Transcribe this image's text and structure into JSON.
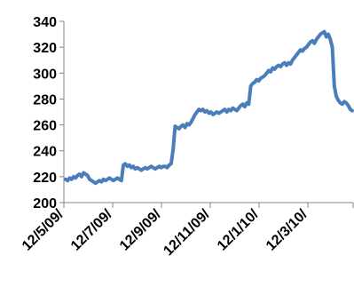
{
  "chart_data": {
    "type": "line",
    "title": "",
    "xlabel": "",
    "ylabel": "",
    "ylim": [
      200,
      340
    ],
    "y_ticks": [
      200,
      220,
      240,
      260,
      280,
      300,
      320,
      340
    ],
    "x_tick_labels": [
      "12/5/09/",
      "12/7/09/",
      "12/9/09/",
      "12/11/09/",
      "12/1/10/",
      "12/3/10/"
    ],
    "grid": false,
    "legend": "none",
    "colors": {
      "line": "#4a7ebb",
      "axis": "#868686"
    },
    "series": [
      {
        "values": [
          218,
          217,
          219,
          218,
          220,
          219,
          221,
          222,
          220,
          223,
          222,
          221,
          218,
          217,
          216,
          215,
          216,
          217,
          216,
          218,
          217,
          218,
          219,
          218,
          217,
          218,
          219,
          218,
          217,
          229,
          230,
          228,
          229,
          227,
          228,
          226,
          227,
          226,
          225,
          226,
          227,
          226,
          227,
          228,
          227,
          226,
          227,
          228,
          227,
          228,
          228,
          227,
          229,
          230,
          241,
          259,
          258,
          257,
          259,
          260,
          258,
          261,
          260,
          262,
          265,
          268,
          270,
          272,
          271,
          272,
          270,
          271,
          269,
          270,
          268,
          269,
          270,
          269,
          270,
          271,
          272,
          270,
          272,
          271,
          273,
          272,
          271,
          273,
          275,
          276,
          274,
          277,
          276,
          290,
          292,
          293,
          295,
          294,
          296,
          297,
          298,
          300,
          302,
          301,
          304,
          303,
          305,
          306,
          305,
          307,
          308,
          306,
          308,
          307,
          310,
          312,
          314,
          316,
          318,
          317,
          319,
          320,
          322,
          324,
          325,
          323,
          326,
          328,
          330,
          331,
          332,
          328,
          330,
          326,
          320,
          290,
          282,
          279,
          277,
          276,
          278,
          277,
          275,
          272,
          271
        ]
      }
    ]
  }
}
